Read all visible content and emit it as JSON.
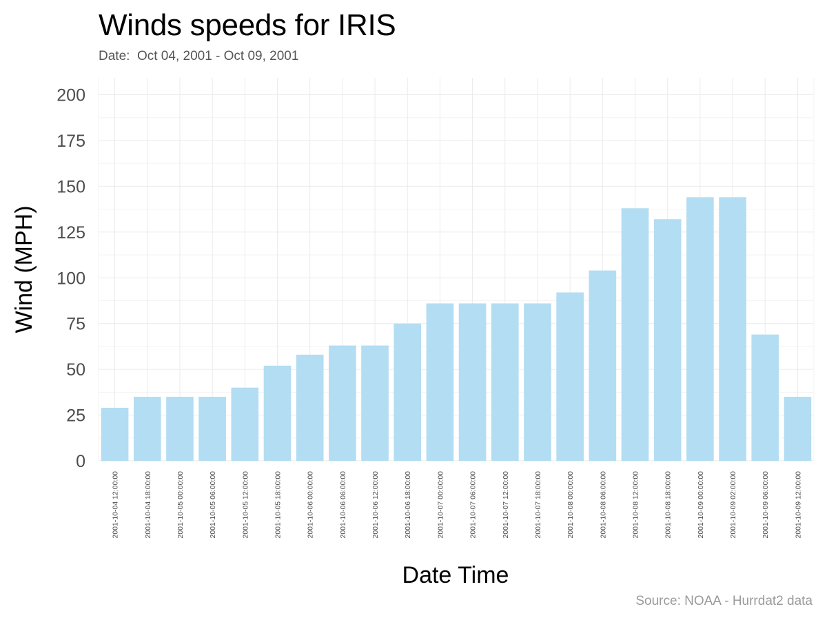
{
  "title": "Winds speeds for IRIS",
  "subtitle": "Date:  Oct 04, 2001 - Oct 09, 2001",
  "caption": "Source: NOAA - Hurrdat2 data",
  "colors": {
    "bar": "#b3ddf2",
    "grid": "#ebebeb",
    "tick_text": "#4d4d4d",
    "axis_title": "#000000"
  },
  "chart_data": {
    "type": "bar",
    "title": "Winds speeds for IRIS",
    "subtitle": "Date:  Oct 04, 2001 - Oct 09, 2001",
    "xlabel": "Date Time",
    "ylabel": "Wind (MPH)",
    "ylim": [
      0,
      210
    ],
    "yticks": [
      0,
      25,
      50,
      75,
      100,
      125,
      150,
      175,
      200
    ],
    "grid": true,
    "legend": "none",
    "categories": [
      "2001-10-04 12:00:00",
      "2001-10-04 18:00:00",
      "2001-10-05 00:00:00",
      "2001-10-05 06:00:00",
      "2001-10-05 12:00:00",
      "2001-10-05 18:00:00",
      "2001-10-06 00:00:00",
      "2001-10-06 06:00:00",
      "2001-10-06 12:00:00",
      "2001-10-06 18:00:00",
      "2001-10-07 00:00:00",
      "2001-10-07 06:00:00",
      "2001-10-07 12:00:00",
      "2001-10-07 18:00:00",
      "2001-10-08 00:00:00",
      "2001-10-08 06:00:00",
      "2001-10-08 12:00:00",
      "2001-10-08 18:00:00",
      "2001-10-09 00:00:00",
      "2001-10-09 02:00:00",
      "2001-10-09 06:00:00",
      "2001-10-09 12:00:00"
    ],
    "values": [
      29,
      35,
      35,
      35,
      40,
      52,
      58,
      63,
      63,
      75,
      86,
      86,
      86,
      86,
      92,
      104,
      138,
      132,
      144,
      144,
      69,
      35
    ]
  }
}
